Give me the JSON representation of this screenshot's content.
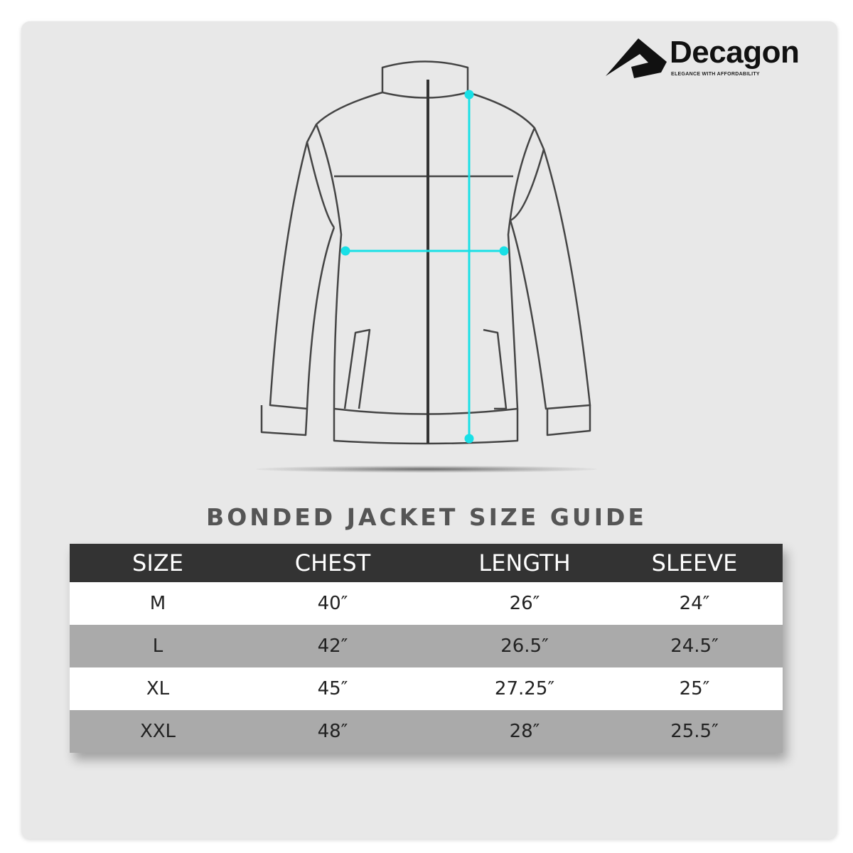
{
  "brand": {
    "name": "Decagon",
    "tagline": "ELEGANCE WITH AFFORDABILITY"
  },
  "title": "BONDED JACKET SIZE GUIDE",
  "colors": {
    "measure_line": "#19e0e6",
    "header_bg": "#333333",
    "row_alt": "#aaaaaa",
    "background": "#e8e8e8"
  },
  "table": {
    "headers": [
      "SIZE",
      "CHEST",
      "LENGTH",
      "SLEEVE"
    ],
    "rows": [
      [
        "M",
        "40″",
        "26″",
        "24″"
      ],
      [
        "L",
        "42″",
        "26.5″",
        "24.5″"
      ],
      [
        "XL",
        "45″",
        "27.25″",
        "25″"
      ],
      [
        "XXL",
        "48″",
        "28″",
        "25.5″"
      ]
    ]
  }
}
